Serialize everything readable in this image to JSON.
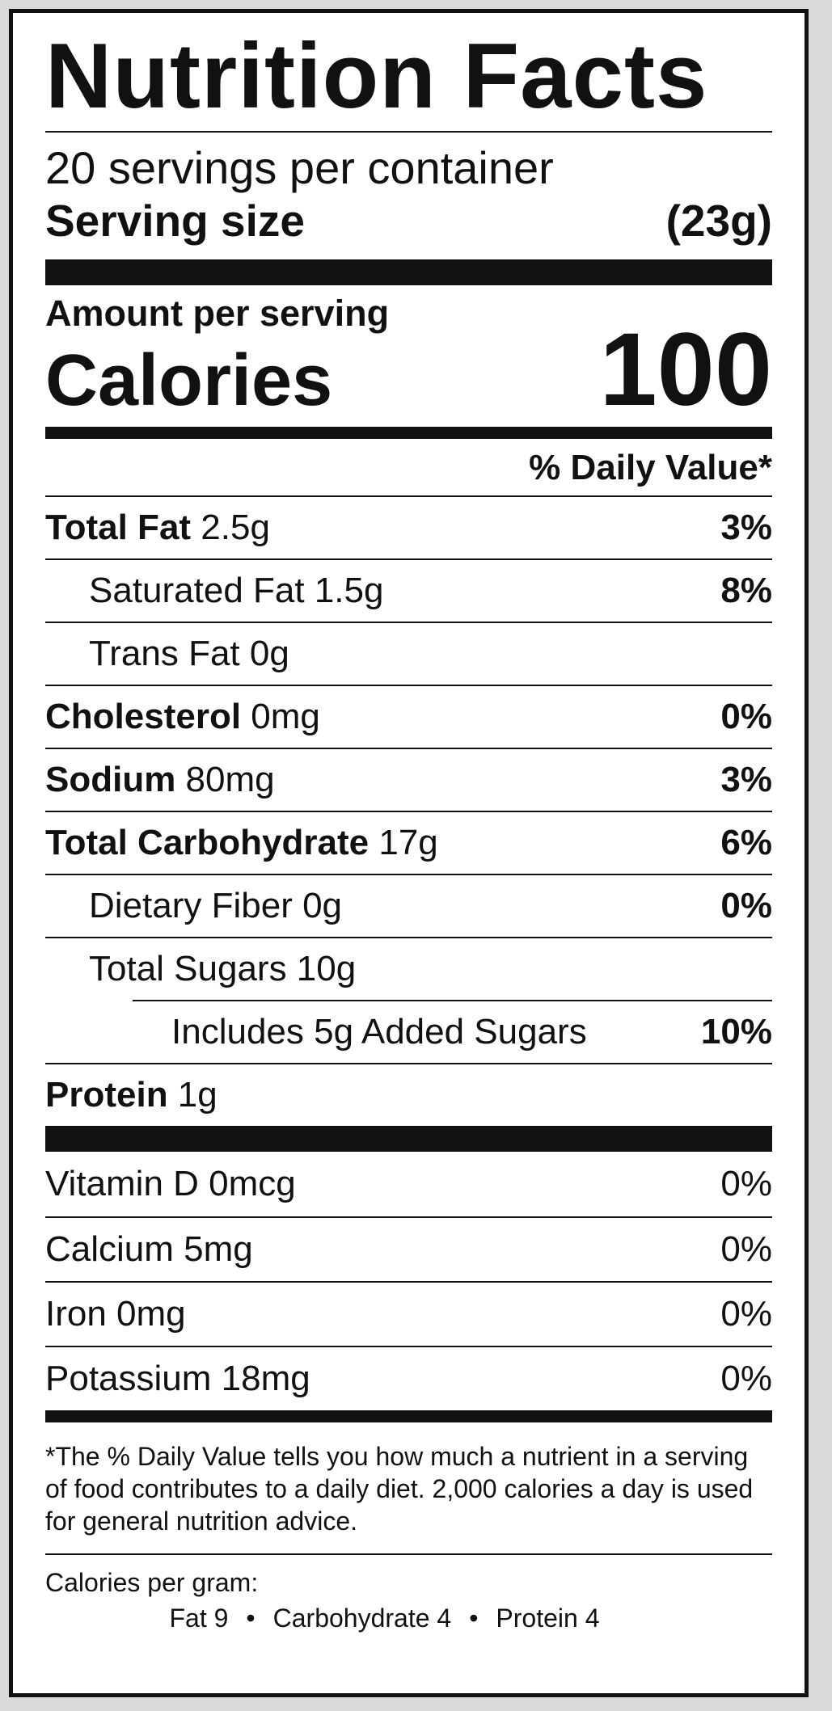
{
  "label": {
    "title": "Nutrition Facts",
    "servings_per_container": "20 servings per container",
    "serving_size_label": "Serving size",
    "serving_size_value": "(23g)",
    "amount_per_serving": "Amount per serving",
    "calories_label": "Calories",
    "calories_value": "100",
    "daily_value_header": "% Daily Value*"
  },
  "nutrients": [
    {
      "bold": "Total Fat",
      "amount": " 2.5g",
      "pct": "3%"
    },
    {
      "name": "Saturated Fat 1.5g",
      "pct": "8%"
    },
    {
      "name": "Trans Fat 0g",
      "pct": ""
    },
    {
      "bold": "Cholesterol",
      "amount": " 0mg",
      "pct": "0%"
    },
    {
      "bold": "Sodium",
      "amount": " 80mg",
      "pct": "3%"
    },
    {
      "bold": "Total Carbohydrate",
      "amount": " 17g",
      "pct": "6%"
    },
    {
      "name": "Dietary Fiber 0g",
      "pct": "0%"
    },
    {
      "name": "Total Sugars 10g",
      "pct": ""
    },
    {
      "name": "Includes 5g Added Sugars",
      "pct": "10%"
    },
    {
      "bold": "Protein",
      "amount": " 1g",
      "pct": ""
    }
  ],
  "vitamins": [
    {
      "name": "Vitamin D 0mcg",
      "pct": "0%"
    },
    {
      "name": "Calcium 5mg",
      "pct": "0%"
    },
    {
      "name": "Iron 0mg",
      "pct": "0%"
    },
    {
      "name": "Potassium 18mg",
      "pct": "0%"
    }
  ],
  "footnote": "*The % Daily Value tells you how much a nutrient in a serving of food contributes to a daily diet. 2,000 calories a day is used for general nutrition advice.",
  "calories_per_gram": {
    "heading": "Calories per gram:",
    "fat": "Fat 9",
    "carbohydrate": "Carbohydrate 4",
    "protein": "Protein 4",
    "separator": "•"
  }
}
